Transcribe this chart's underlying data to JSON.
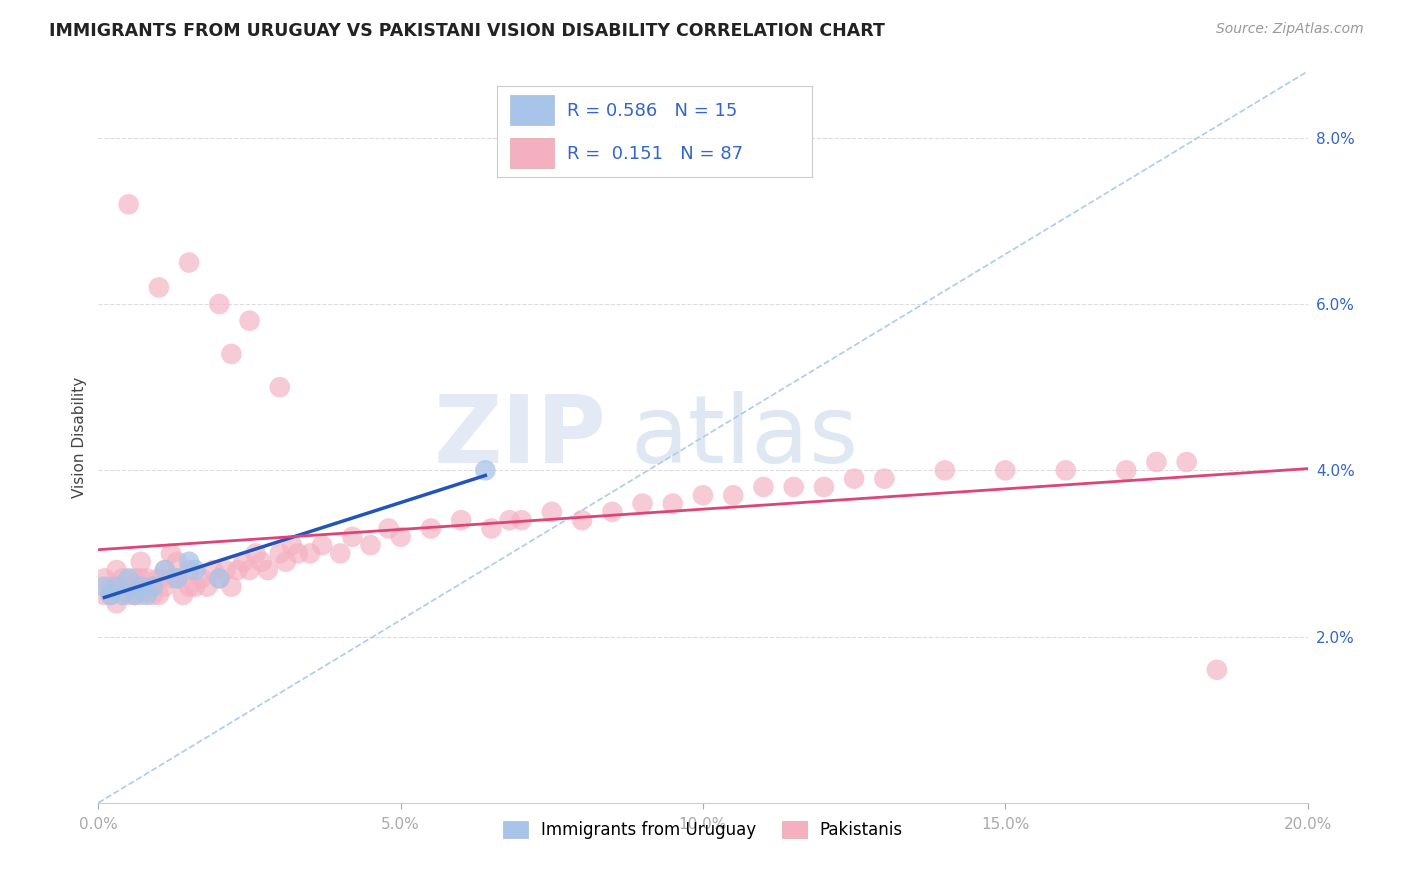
{
  "title": "IMMIGRANTS FROM URUGUAY VS PAKISTANI VISION DISABILITY CORRELATION CHART",
  "source": "Source: ZipAtlas.com",
  "ylabel": "Vision Disability",
  "xlim": [
    0.0,
    0.2
  ],
  "ylim": [
    0.0,
    0.088
  ],
  "x_ticks": [
    0.0,
    0.05,
    0.1,
    0.15,
    0.2
  ],
  "x_tick_labels": [
    "0.0%",
    "5.0%",
    "10.0%",
    "15.0%",
    "20.0%"
  ],
  "y_ticks_right": [
    0.02,
    0.04,
    0.06,
    0.08
  ],
  "y_tick_labels_right": [
    "2.0%",
    "4.0%",
    "6.0%",
    "8.0%"
  ],
  "series1_label": "Immigrants from Uruguay",
  "series2_label": "Pakistanis",
  "series1_color": "#a8c4e8",
  "series2_color": "#f4afc0",
  "series1_line_color": "#2255bb",
  "series2_line_color": "#dd4477",
  "diag_line_color": "#aaccee",
  "R1": 0.586,
  "N1": 15,
  "R2": 0.151,
  "N2": 87,
  "uruguay_x": [
    0.001,
    0.002,
    0.003,
    0.004,
    0.005,
    0.006,
    0.007,
    0.008,
    0.009,
    0.011,
    0.013,
    0.015,
    0.016,
    0.02,
    0.064
  ],
  "uruguay_y": [
    0.026,
    0.025,
    0.026,
    0.025,
    0.027,
    0.025,
    0.026,
    0.025,
    0.026,
    0.028,
    0.027,
    0.029,
    0.028,
    0.027,
    0.04
  ],
  "pak_x": [
    0.001,
    0.001,
    0.002,
    0.002,
    0.003,
    0.003,
    0.003,
    0.004,
    0.004,
    0.005,
    0.005,
    0.006,
    0.006,
    0.006,
    0.007,
    0.007,
    0.007,
    0.008,
    0.008,
    0.009,
    0.009,
    0.01,
    0.01,
    0.011,
    0.011,
    0.012,
    0.012,
    0.013,
    0.013,
    0.014,
    0.015,
    0.015,
    0.016,
    0.017,
    0.018,
    0.019,
    0.02,
    0.021,
    0.022,
    0.023,
    0.024,
    0.025,
    0.026,
    0.027,
    0.028,
    0.03,
    0.031,
    0.032,
    0.033,
    0.035,
    0.037,
    0.04,
    0.042,
    0.045,
    0.048,
    0.05,
    0.055,
    0.06,
    0.065,
    0.068,
    0.07,
    0.075,
    0.08,
    0.085,
    0.09,
    0.095,
    0.1,
    0.105,
    0.11,
    0.115,
    0.12,
    0.125,
    0.13,
    0.14,
    0.15,
    0.16,
    0.17,
    0.175,
    0.18,
    0.015,
    0.01,
    0.02,
    0.005,
    0.022,
    0.025,
    0.03,
    0.185
  ],
  "pak_y": [
    0.025,
    0.027,
    0.025,
    0.026,
    0.024,
    0.026,
    0.028,
    0.026,
    0.027,
    0.025,
    0.026,
    0.025,
    0.026,
    0.027,
    0.025,
    0.027,
    0.029,
    0.026,
    0.027,
    0.025,
    0.026,
    0.025,
    0.027,
    0.026,
    0.028,
    0.027,
    0.03,
    0.027,
    0.029,
    0.025,
    0.026,
    0.028,
    0.026,
    0.027,
    0.026,
    0.028,
    0.027,
    0.028,
    0.026,
    0.028,
    0.029,
    0.028,
    0.03,
    0.029,
    0.028,
    0.03,
    0.029,
    0.031,
    0.03,
    0.03,
    0.031,
    0.03,
    0.032,
    0.031,
    0.033,
    0.032,
    0.033,
    0.034,
    0.033,
    0.034,
    0.034,
    0.035,
    0.034,
    0.035,
    0.036,
    0.036,
    0.037,
    0.037,
    0.038,
    0.038,
    0.038,
    0.039,
    0.039,
    0.04,
    0.04,
    0.04,
    0.04,
    0.041,
    0.041,
    0.065,
    0.062,
    0.06,
    0.072,
    0.054,
    0.058,
    0.05,
    0.016
  ]
}
